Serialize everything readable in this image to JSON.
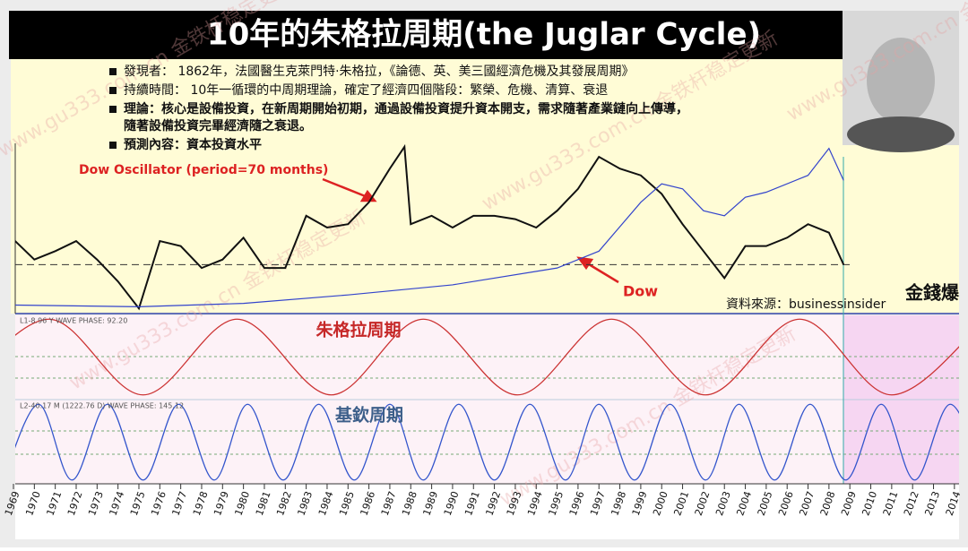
{
  "header": {
    "title": "10年的朱格拉周期(the Juglar Cycle)"
  },
  "notes": [
    {
      "lines": [
        "發現者： 1862年，法國醫生克萊門特·朱格拉，《論德、英、美三國經濟危機及其發展周期》"
      ]
    },
    {
      "lines": [
        "持續時間： 10年一循環的中周期理論，確定了經濟四個階段：繁榮、危機、清算、衰退"
      ]
    },
    {
      "lines": [
        "理論：核心是設備投資，在新周期開始初期，通過設備投資提升資本開支，需求隨著產業鏈向上傳導，",
        "隨著設備投資完畢經濟隨之衰退。"
      ]
    },
    {
      "lines": [
        "預測內容：資本投資水平"
      ]
    }
  ],
  "watermark": "www.gu333.com.cn 金铁杆稳定更新",
  "logo": "金錢爆",
  "chart_data": [
    {
      "type": "line",
      "annotations": [
        "Dow Oscillator (period=70 months)",
        "Dow"
      ],
      "source": "資料來源：businessinsider",
      "xlim": [
        1968.9,
        2014.4
      ],
      "ylim": [
        0,
        100
      ],
      "baseline": 28,
      "series": [
        {
          "color": "#111111",
          "x": [
            1969,
            1970,
            1971,
            1972,
            1973,
            1974,
            1975,
            1976,
            1977,
            1978,
            1979,
            1980,
            1981,
            1982,
            1983,
            1984,
            1985,
            1986,
            1987,
            1987.7,
            1988,
            1989,
            1990,
            1991,
            1992,
            1993,
            1994,
            1995,
            1996,
            1997,
            1998,
            1999,
            2000,
            2001,
            2002,
            2003,
            2004,
            2005,
            2006,
            2007,
            2008,
            2008.7
          ],
          "values": [
            43,
            31,
            36,
            42,
            31,
            18,
            2,
            42,
            39,
            26,
            31,
            44,
            26,
            26,
            57,
            50,
            52,
            65,
            85,
            98,
            52,
            57,
            50,
            57,
            57,
            55,
            50,
            60,
            73,
            92,
            85,
            81,
            70,
            52,
            36,
            20,
            39,
            39,
            44,
            52,
            47,
            28
          ]
        },
        {
          "color": "#3344cc",
          "x": [
            1969,
            1975,
            1980,
            1985,
            1990,
            1995,
            1997,
            1999,
            2000,
            2001,
            2002,
            2003,
            2004,
            2005,
            2007,
            2008,
            2008.7
          ],
          "values": [
            4,
            3,
            5,
            10,
            16,
            26,
            36,
            65,
            76,
            73,
            60,
            57,
            68,
            71,
            81,
            97,
            78
          ]
        }
      ]
    },
    {
      "type": "wave",
      "label": "朱格拉周期",
      "caption": "L1-8.96 Y WAVE PHASE: 92.20",
      "color": "#cc3333",
      "xlim": [
        1968.9,
        2014.4
      ],
      "ylim": [
        -1.1,
        1.1
      ],
      "x": [
        1966.2,
        1970.7,
        1975.2,
        1979.7,
        1984.2,
        1988.6,
        1993.1,
        1997.6,
        2002.1,
        2006.6,
        2011.0,
        2015.5
      ],
      "values": [
        -1,
        1,
        -1,
        1,
        -1,
        1,
        -1,
        1,
        -1,
        1,
        -1,
        1
      ]
    },
    {
      "type": "wave",
      "label": "基欽周期",
      "caption": "L2-40.17 M (1222.76 D) WAVE PHASE: 145.12",
      "color": "#3355cc",
      "xlim": [
        1968.9,
        2014.4
      ],
      "ylim": [
        -1.1,
        1.1
      ],
      "x": [
        1968.5,
        1970.2,
        1971.8,
        1973.5,
        1975.2,
        1976.9,
        1978.6,
        1980.2,
        1981.9,
        1983.6,
        1985.3,
        1987.0,
        1988.6,
        1990.3,
        1992.0,
        1993.7,
        1995.4,
        1997.0,
        1998.7,
        2000.4,
        2002.1,
        2003.7,
        2005.4,
        2007.1,
        2008.8,
        2010.5,
        2012.1,
        2013.8,
        2015.5
      ],
      "values": [
        -1,
        1,
        -1,
        1,
        -1,
        1,
        -1,
        1,
        -1,
        1,
        -1,
        1,
        -1,
        1,
        -1,
        1,
        -1,
        1,
        -1,
        1,
        -1,
        1,
        -1,
        1,
        -1,
        1,
        -1,
        1,
        -1
      ],
      "xticks": [
        1969,
        1970,
        1971,
        1972,
        1973,
        1974,
        1975,
        1976,
        1977,
        1978,
        1979,
        1980,
        1981,
        1982,
        1983,
        1984,
        1985,
        1986,
        1987,
        1988,
        1989,
        1990,
        1991,
        1992,
        1993,
        1994,
        1995,
        1996,
        1997,
        1998,
        1999,
        2000,
        2001,
        2002,
        2003,
        2004,
        2005,
        2006,
        2007,
        2008,
        2009,
        2010,
        2011,
        2012,
        2013,
        2014
      ]
    }
  ]
}
